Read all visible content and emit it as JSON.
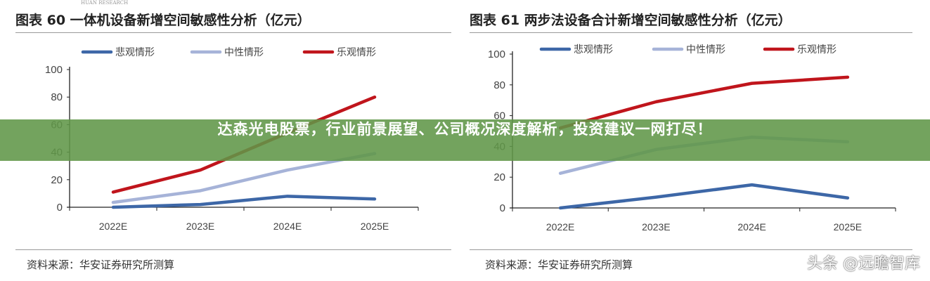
{
  "header_faint": "HUAN RESEARCH",
  "banner": "达森光电股票，行业前景展望、公司概况深度解析，投资建议一网打尽！",
  "watermark": "头条 @远瞻智库",
  "colors": {
    "悲观情形": "#3d67a7",
    "中性情形": "#a6b3d8",
    "乐观情形": "#c0151c",
    "banner": "#609648"
  },
  "chart_data": [
    {
      "type": "line",
      "title": "图表 60  一体机设备新增空间敏感性分析（亿元）",
      "source": "资料来源：华安证券研究所测算",
      "categories": [
        "2022E",
        "2023E",
        "2024E",
        "2025E"
      ],
      "ylim": [
        0,
        100
      ],
      "yticks": [
        "0",
        "20",
        "40",
        "60",
        "80",
        "100"
      ],
      "legend": "top",
      "grid": false,
      "series": [
        {
          "name": "悲观情形",
          "values": [
            0,
            2,
            8,
            6
          ]
        },
        {
          "name": "中性情形",
          "values": [
            3.5,
            12,
            27,
            39
          ]
        },
        {
          "name": "乐观情形",
          "values": [
            11,
            27,
            54,
            80
          ]
        }
      ]
    },
    {
      "type": "line",
      "title": "图表 61 两步法设备合计新增空间敏感性分析（亿元）",
      "source": "资料来源：华安证券研究所测算",
      "categories": [
        "2022E",
        "2023E",
        "2024E",
        "2025E"
      ],
      "ylim": [
        0,
        100
      ],
      "yticks": [
        "0",
        "20",
        "40",
        "60",
        "80",
        "100"
      ],
      "legend": "top",
      "grid": false,
      "series": [
        {
          "name": "悲观情形",
          "values": [
            0,
            7,
            15,
            6.5
          ]
        },
        {
          "name": "中性情形",
          "values": [
            22.5,
            38,
            46,
            43
          ]
        },
        {
          "name": "乐观情形",
          "values": [
            52,
            69,
            81,
            85
          ]
        }
      ]
    }
  ]
}
